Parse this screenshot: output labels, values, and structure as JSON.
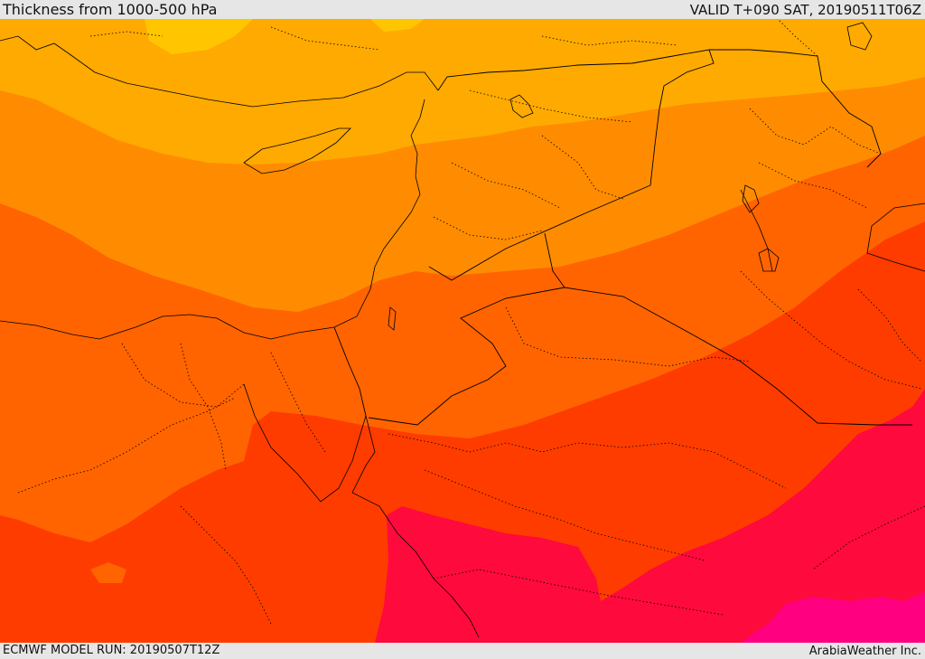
{
  "header": {
    "title": "Thickness from 1000-500 hPa",
    "valid": "VALID T+090 SAT, 20190511T06Z"
  },
  "footer": {
    "model_run": "ECMWF MODEL RUN: 20190507T12Z",
    "credit": "ArabiaWeather Inc."
  },
  "map": {
    "colors": {
      "band1": "#ffc600",
      "band2": "#ffaa00",
      "band3": "#ff8c00",
      "band4": "#ff6400",
      "band5": "#ff3c00",
      "band6": "#ff0a3c",
      "band7": "#ff0080",
      "border": "#000000"
    }
  }
}
